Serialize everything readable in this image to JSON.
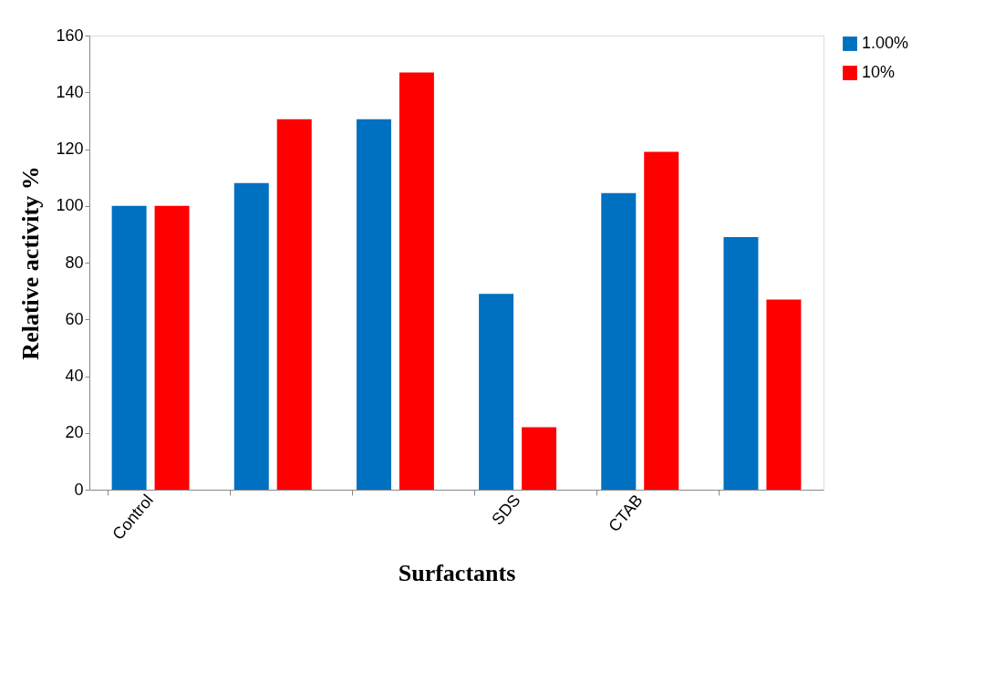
{
  "chart_data": {
    "type": "bar",
    "xlabel": "Surfactants",
    "ylabel": "Relative activity %",
    "categories": [
      "Control",
      null,
      null,
      "SDS",
      "CTAB",
      null
    ],
    "series": [
      {
        "name": "1.00%",
        "color": "#0070c0",
        "values": [
          100,
          108,
          130.5,
          69,
          104.5,
          89
        ]
      },
      {
        "name": "10%",
        "color": "#ff0000",
        "values": [
          100,
          130.5,
          147,
          22,
          119,
          67
        ]
      }
    ],
    "ylim": [
      0,
      160
    ],
    "yticks": [
      0,
      20,
      40,
      60,
      80,
      100,
      120,
      140,
      160
    ],
    "grid": false,
    "legend": "right"
  }
}
